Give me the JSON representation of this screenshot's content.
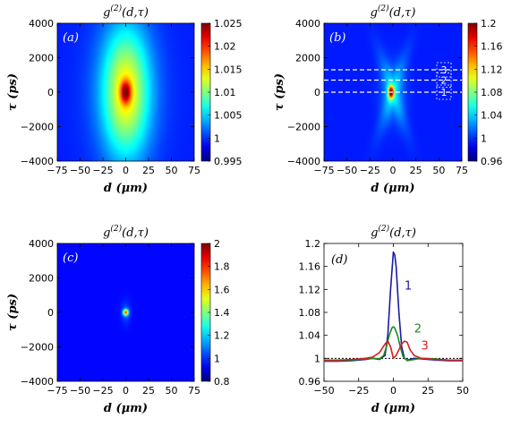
{
  "chart_data": [
    {
      "id": "a",
      "type": "heatmap",
      "panel_label": "(a)",
      "title": "g^(2)(d,τ)",
      "xlabel": "d (μm)",
      "ylabel": "τ (ps)",
      "xlim": [
        -75,
        75
      ],
      "ylim": [
        -4000,
        4000
      ],
      "x_ticks": [
        "−75",
        "−50",
        "−25",
        "0",
        "25",
        "50",
        "75"
      ],
      "y_ticks": [
        "4000",
        "2000",
        "0",
        "−2000",
        "−4000"
      ],
      "colorbar": {
        "min": 0.995,
        "max": 1.025,
        "ticks": [
          "1.025",
          "1.02",
          "1.015",
          "1.01",
          "1.005",
          "1",
          "0.995"
        ]
      },
      "peak": {
        "d": 0,
        "tau": 0,
        "value": 1.025
      },
      "background_value": 0.998
    },
    {
      "id": "b",
      "type": "heatmap",
      "panel_label": "(b)",
      "title": "g^(2)(d,τ)",
      "xlabel": "d (μm)",
      "ylabel": "τ (ps)",
      "xlim": [
        -75,
        75
      ],
      "ylim": [
        -4000,
        4000
      ],
      "x_ticks": [
        "−75",
        "−50",
        "−25",
        "0",
        "25",
        "50",
        "75"
      ],
      "y_ticks": [
        "4000",
        "2000",
        "0",
        "−2000",
        "−4000"
      ],
      "colorbar": {
        "min": 0.96,
        "max": 1.2,
        "ticks": [
          "1.2",
          "1.16",
          "1.12",
          "1.08",
          "1.04",
          "1",
          "0.96"
        ]
      },
      "peak": {
        "d": -2,
        "tau": 0,
        "value": 1.19
      },
      "background_value": 0.99,
      "cuts": [
        {
          "label": "1",
          "tau": 0
        },
        {
          "label": "2",
          "tau": 700
        },
        {
          "label": "3",
          "tau": 1300
        }
      ]
    },
    {
      "id": "c",
      "type": "heatmap",
      "panel_label": "(c)",
      "title": "g^(2)(d,τ)",
      "xlabel": "d (μm)",
      "ylabel": "τ (ps)",
      "xlim": [
        -75,
        75
      ],
      "ylim": [
        -4000,
        4000
      ],
      "x_ticks": [
        "−75",
        "−50",
        "−25",
        "0",
        "25",
        "50",
        "75"
      ],
      "y_ticks": [
        "4000",
        "2000",
        "0",
        "−2000",
        "−4000"
      ],
      "colorbar": {
        "min": 0.8,
        "max": 2,
        "ticks": [
          "2",
          "1.8",
          "1.6",
          "1.4",
          "1.2",
          "1",
          "0.8"
        ]
      },
      "peak": {
        "d": 0,
        "tau": 0,
        "value": 1.3
      },
      "background_value": 0.97
    },
    {
      "id": "d",
      "type": "line",
      "panel_label": "(d)",
      "title": "g^(2)(d,τ)",
      "xlabel": "d (μm)",
      "xlim": [
        -50,
        50
      ],
      "ylim": [
        0.96,
        1.2
      ],
      "x_ticks": [
        "−50",
        "−25",
        "0",
        "25",
        "50"
      ],
      "y_ticks": [
        "1.2",
        "1.16",
        "1.12",
        "1.08",
        "1.04",
        "1",
        "0.96"
      ],
      "reference_line": {
        "y": 1,
        "style": "dotted"
      },
      "series": [
        {
          "name": "1",
          "color": "#1a1aa6",
          "x": [
            -50,
            -40,
            -30,
            -20,
            -15,
            -10,
            -6,
            -4,
            -2,
            0,
            1,
            2,
            4,
            6,
            8,
            10,
            12,
            15,
            20,
            30,
            40,
            50
          ],
          "y": [
            0.995,
            0.995,
            0.996,
            0.998,
            1.0,
            0.998,
            1.005,
            1.04,
            1.12,
            1.185,
            1.18,
            1.16,
            1.08,
            1.02,
            1.0,
            0.997,
            0.998,
            1.0,
            0.999,
            0.997,
            0.996,
            0.996
          ]
        },
        {
          "name": "2",
          "color": "#1e8a1e",
          "x": [
            -50,
            -40,
            -30,
            -20,
            -15,
            -10,
            -7,
            -5,
            -3,
            -1,
            0,
            1,
            3,
            5,
            7,
            10,
            15,
            20,
            30,
            40,
            50
          ],
          "y": [
            0.996,
            0.996,
            0.997,
            0.999,
            1.0,
            0.999,
            1.005,
            1.02,
            1.04,
            1.053,
            1.055,
            1.053,
            1.04,
            1.02,
            1.003,
            0.996,
            0.998,
            1.0,
            0.999,
            0.997,
            0.997
          ]
        },
        {
          "name": "3",
          "color": "#d42020",
          "x": [
            -50,
            -40,
            -30,
            -20,
            -15,
            -10,
            -6,
            -4,
            -2,
            0,
            2,
            4,
            6,
            8,
            10,
            12,
            15,
            20,
            25,
            30,
            40,
            50
          ],
          "y": [
            0.997,
            0.997,
            0.998,
            1.0,
            1.002,
            1.01,
            1.025,
            1.03,
            1.02,
            1.0,
            1.005,
            1.015,
            1.025,
            1.03,
            1.028,
            1.015,
            1.005,
            1.0,
            0.999,
            0.998,
            0.997,
            0.997
          ]
        }
      ]
    }
  ]
}
